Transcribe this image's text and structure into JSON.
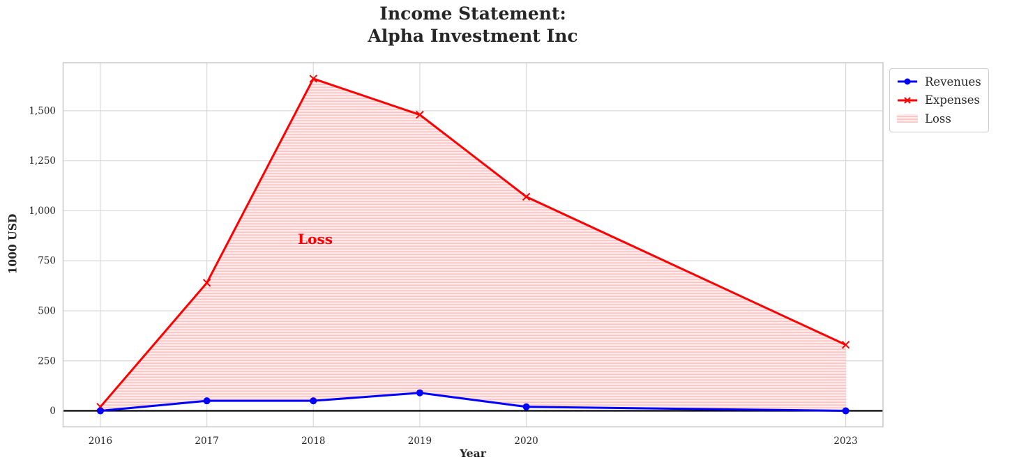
{
  "title": {
    "line1": "Income Statement:",
    "line2": "Alpha Investment Inc"
  },
  "axes": {
    "x_label": "Year",
    "y_label": "1000 USD"
  },
  "annotation": {
    "loss_label": "Loss"
  },
  "legend": {
    "items": [
      {
        "label": "Revenues",
        "icon": "line-with-circle-marker"
      },
      {
        "label": "Expenses",
        "icon": "line-with-x-marker"
      },
      {
        "label": "Loss",
        "icon": "hatched-patch"
      }
    ]
  },
  "colors": {
    "revenues": "#0000ff",
    "expenses": "#ff0000",
    "loss_fill_bg": "#fdeaea",
    "loss_hatch_line": "#f9bebe",
    "annotation_text": "#ff0000",
    "grid": "#d9d9d9",
    "spine": "#c9c9c9",
    "zero_line": "#000000",
    "text": "#262626"
  },
  "chart_data": {
    "type": "line",
    "title": "Income Statement: Alpha Investment Inc",
    "xlabel": "Year",
    "ylabel": "1000 USD",
    "x": [
      2016,
      2017,
      2018,
      2019,
      2020,
      2023
    ],
    "series": [
      {
        "name": "Revenues",
        "values": [
          0,
          50,
          50,
          90,
          20,
          0
        ],
        "marker": "circle"
      },
      {
        "name": "Expenses",
        "values": [
          20,
          640,
          1660,
          1480,
          1070,
          330
        ],
        "marker": "x"
      }
    ],
    "fill_between": {
      "label": "Loss",
      "upper_series": "Expenses",
      "lower_series": "Revenues",
      "style": "horizontal-hatch"
    },
    "xlim": [
      2015.65,
      2023.35
    ],
    "ylim": [
      -80,
      1740
    ],
    "xticks": {
      "values": [
        2016,
        2017,
        2018,
        2019,
        2020,
        2023
      ],
      "labels": [
        "2016",
        "2017",
        "2018",
        "2019",
        "2020",
        "2023"
      ]
    },
    "yticks": {
      "values": [
        0,
        250,
        500,
        750,
        1000,
        1250,
        1500
      ],
      "labels": [
        "0",
        "250",
        "500",
        "750",
        "1,000",
        "1,250",
        "1,500"
      ]
    },
    "grid": true,
    "zero_line": true,
    "legend_position": "outside-top-right"
  }
}
